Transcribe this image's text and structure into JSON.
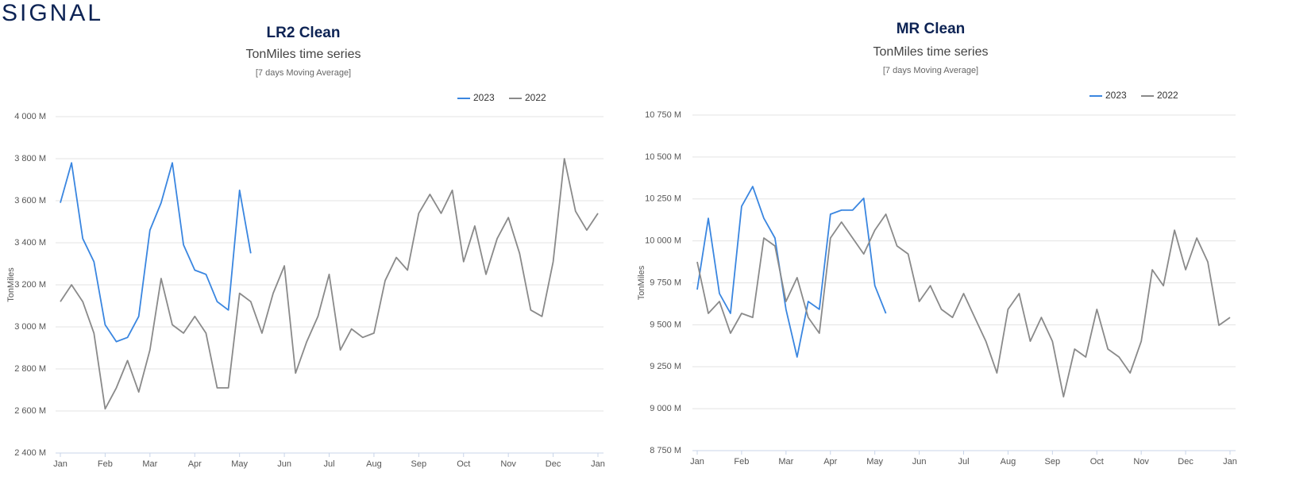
{
  "logo": "SIGNAL",
  "chart_data": [
    {
      "type": "line",
      "title": "LR2 Clean",
      "subtitle": "TonMiles time series",
      "note": "[7 days Moving Average]",
      "ylabel": "TonMiles",
      "categories": [
        "Jan",
        null,
        null,
        null,
        "Feb",
        null,
        null,
        null,
        "Mar",
        null,
        null,
        null,
        "Apr",
        null,
        null,
        null,
        "May",
        null,
        null,
        null,
        "Jun",
        null,
        null,
        null,
        "Jul",
        null,
        null,
        null,
        "Aug",
        null,
        null,
        null,
        "Sep",
        null,
        null,
        null,
        "Oct",
        null,
        null,
        null,
        "Nov",
        null,
        null,
        null,
        "Dec",
        null,
        null,
        null,
        "Jan"
      ],
      "ylim": [
        2400,
        4000
      ],
      "yticks": [
        {
          "value": 2400,
          "label": "2 400 M"
        },
        {
          "value": 2600,
          "label": "2 600 M"
        },
        {
          "value": 2800,
          "label": "2 800 M"
        },
        {
          "value": 3000,
          "label": "3 000 M"
        },
        {
          "value": 3200,
          "label": "3 200 M"
        },
        {
          "value": 3400,
          "label": "3 400 M"
        },
        {
          "value": 3600,
          "label": "3 600 M"
        },
        {
          "value": 3800,
          "label": "3 800 M"
        },
        {
          "value": 4000,
          "label": "4 000 M"
        }
      ],
      "grid": true,
      "series": [
        {
          "name": "2023",
          "color": "#3a86e0",
          "values": [
            3590,
            3780,
            3420,
            3310,
            3010,
            2930,
            2950,
            3050,
            3460,
            3590,
            3780,
            3390,
            3270,
            3250,
            3120,
            3080,
            3650,
            3350,
            null,
            null,
            null,
            null,
            null,
            null,
            null,
            null,
            null,
            null,
            null,
            null,
            null,
            null,
            null,
            null,
            null,
            null,
            null,
            null,
            null,
            null,
            null,
            null,
            null,
            null,
            null,
            null,
            null,
            null,
            null
          ]
        },
        {
          "name": "2022",
          "color": "#8a8a8a",
          "values": [
            3120,
            3200,
            3120,
            2970,
            2610,
            2710,
            2840,
            2690,
            2890,
            3230,
            3010,
            2970,
            3050,
            2970,
            2710,
            2710,
            3160,
            3120,
            2970,
            3160,
            3290,
            2780,
            2930,
            3050,
            3250,
            2890,
            2990,
            2950,
            2970,
            3220,
            3330,
            3270,
            3540,
            3630,
            3540,
            3650,
            3310,
            3480,
            3250,
            3420,
            3520,
            3350,
            3080,
            3050,
            3310,
            3800,
            3550,
            3460,
            3540
          ]
        }
      ]
    },
    {
      "type": "line",
      "title": "MR Clean",
      "subtitle": "TonMiles time series",
      "note": "[7 days Moving Average]",
      "ylabel": "TonMiles",
      "categories": [
        "Jan",
        null,
        null,
        null,
        "Feb",
        null,
        null,
        null,
        "Mar",
        null,
        null,
        null,
        "Apr",
        null,
        null,
        null,
        "May",
        null,
        null,
        null,
        "Jun",
        null,
        null,
        null,
        "Jul",
        null,
        null,
        null,
        "Aug",
        null,
        null,
        null,
        "Sep",
        null,
        null,
        null,
        "Oct",
        null,
        null,
        null,
        "Nov",
        null,
        null,
        null,
        "Dec",
        null,
        null,
        null,
        "Jan"
      ],
      "ylim": [
        8750,
        10750
      ],
      "yticks": [
        {
          "value": 8750,
          "label": "8 750 M"
        },
        {
          "value": 9000,
          "label": "9 000 M"
        },
        {
          "value": 9250,
          "label": "9 250 M"
        },
        {
          "value": 9500,
          "label": "9 500 M"
        },
        {
          "value": 9750,
          "label": "9 750 M"
        },
        {
          "value": 10000,
          "label": "10 000 M"
        },
        {
          "value": 10250,
          "label": "10 250 M"
        },
        {
          "value": 10500,
          "label": "10 500 M"
        },
        {
          "value": 10750,
          "label": "10 750 M"
        }
      ],
      "grid": true,
      "series": [
        {
          "name": "2023",
          "color": "#3a86e0",
          "values": [
            9710,
            10135,
            9686,
            9568,
            10206,
            10324,
            10135,
            10017,
            9592,
            9308,
            9639,
            9592,
            10159,
            10183,
            10183,
            10254,
            9733,
            9568,
            null,
            null,
            null,
            null,
            null,
            null,
            null,
            null,
            null,
            null,
            null,
            null,
            null,
            null,
            null,
            null,
            null,
            null,
            null,
            null,
            null,
            null,
            null,
            null,
            null,
            null,
            null,
            null,
            null,
            null,
            null
          ]
        },
        {
          "name": "2022",
          "color": "#8a8a8a",
          "values": [
            9875,
            9568,
            9639,
            9450,
            9568,
            9544,
            10017,
            9970,
            9639,
            9781,
            9544,
            9450,
            10017,
            10112,
            10017,
            9922,
            10064,
            10159,
            9970,
            9922,
            9639,
            9733,
            9592,
            9544,
            9686,
            9544,
            9402,
            9213,
            9592,
            9686,
            9402,
            9544,
            9402,
            9071,
            9355,
            9308,
            9592,
            9355,
            9308,
            9213,
            9402,
            9828,
            9733,
            10064,
            9828,
            10017,
            9875,
            9497,
            9544
          ]
        }
      ]
    }
  ]
}
